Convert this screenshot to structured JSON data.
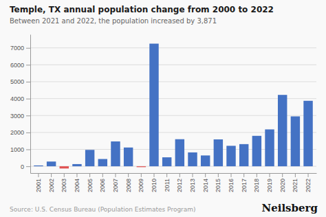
{
  "chart_data": {
    "type": "bar",
    "title": "Temple, TX annual population change from 2000 to 2022",
    "subtitle": "Between 2021 and 2022, the population increased by 3,871",
    "annotations": [
      "Source: U.S. Census Bureau (Population Estimates Program)",
      "Neilsberg"
    ],
    "categories": [
      "2001",
      "2002",
      "2003",
      "2004",
      "2005",
      "2006",
      "2007",
      "2008",
      "2009",
      "2010",
      "2011",
      "2012",
      "2013",
      "2014",
      "2015",
      "2016",
      "2017",
      "2018",
      "2019",
      "2020",
      "2021",
      "2022"
    ],
    "values": [
      50,
      280,
      -130,
      130,
      970,
      430,
      1470,
      1110,
      -50,
      7250,
      530,
      1600,
      820,
      640,
      1590,
      1210,
      1310,
      1800,
      2180,
      4220,
      2950,
      3871
    ],
    "colors": [
      "#4472C4",
      "#4472C4",
      "#E05252",
      "#4472C4",
      "#4472C4",
      "#4472C4",
      "#4472C4",
      "#4472C4",
      "#E05252",
      "#4472C4",
      "#4472C4",
      "#4472C4",
      "#4472C4",
      "#4472C4",
      "#4472C4",
      "#4472C4",
      "#4472C4",
      "#4472C4",
      "#4472C4",
      "#4472C4",
      "#4472C4",
      "#4472C4"
    ],
    "ylim": [
      -400,
      7800
    ],
    "yticks": [
      0,
      1000,
      2000,
      3000,
      4000,
      5000,
      6000,
      7000
    ],
    "grid": true
  }
}
